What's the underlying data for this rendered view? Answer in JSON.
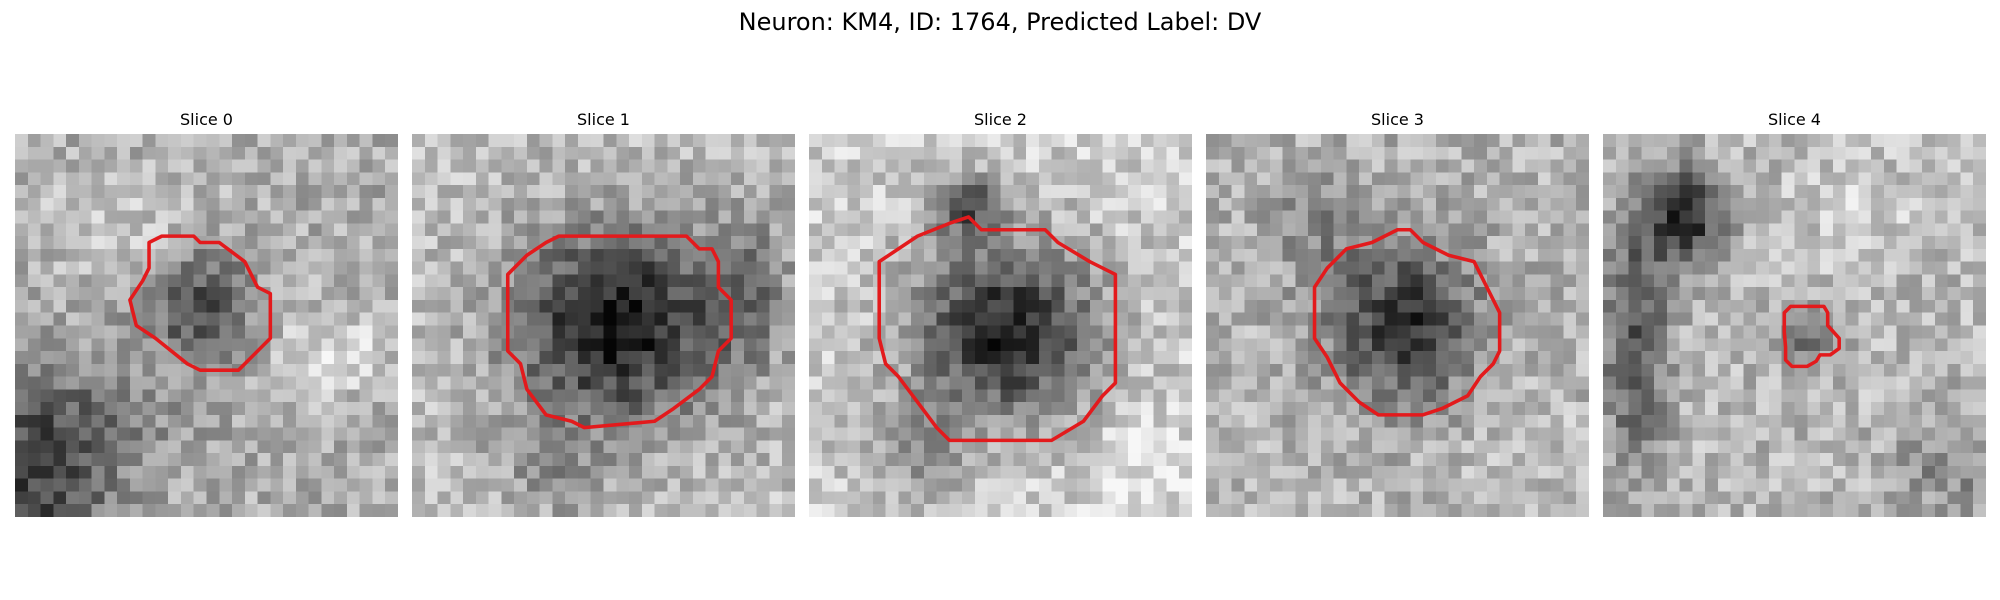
{
  "figure": {
    "title": "Neuron: KM4, ID: 1764, Predicted Label: DV"
  },
  "style": {
    "contour_color": "#e31a1c",
    "colormap": "grayscale"
  },
  "panels": [
    {
      "title": "Slice 0",
      "dark_regions": "small-blob-center-left; dark band bottom-left",
      "contour": "medium"
    },
    {
      "title": "Slice 1",
      "dark_regions": "large-blob-center",
      "contour": "large"
    },
    {
      "title": "Slice 2",
      "dark_regions": "large-blob-center; dark cap top",
      "contour": "large"
    },
    {
      "title": "Slice 3",
      "dark_regions": "medium-blob-center",
      "contour": "medium"
    },
    {
      "title": "Slice 4",
      "dark_regions": "dark streak top-left; small blob center-right",
      "contour": "small"
    }
  ]
}
